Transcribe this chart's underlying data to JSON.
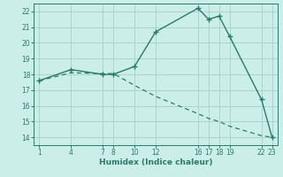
{
  "x_solid": [
    1,
    4,
    7,
    8,
    10,
    12,
    16,
    17,
    18,
    19,
    22,
    23
  ],
  "y_solid": [
    17.6,
    18.3,
    18.0,
    18.0,
    18.5,
    20.7,
    22.2,
    21.5,
    21.7,
    20.4,
    16.4,
    14.0
  ],
  "x_dashed": [
    1,
    4,
    7,
    8,
    10,
    12,
    16,
    17,
    18,
    19,
    22,
    23
  ],
  "y_dashed": [
    17.6,
    18.1,
    18.05,
    18.05,
    17.3,
    16.6,
    15.5,
    15.2,
    15.0,
    14.7,
    14.1,
    14.0
  ],
  "line_color": "#2a7a6a",
  "bg_color": "#cceee8",
  "grid_color": "#aad4cc",
  "xlabel": "Humidex (Indice chaleur)",
  "xticks": [
    1,
    4,
    7,
    8,
    10,
    12,
    16,
    17,
    18,
    19,
    22,
    23
  ],
  "yticks": [
    14,
    15,
    16,
    17,
    18,
    19,
    20,
    21,
    22
  ],
  "ylim": [
    13.5,
    22.5
  ],
  "xlim": [
    0.5,
    23.5
  ]
}
